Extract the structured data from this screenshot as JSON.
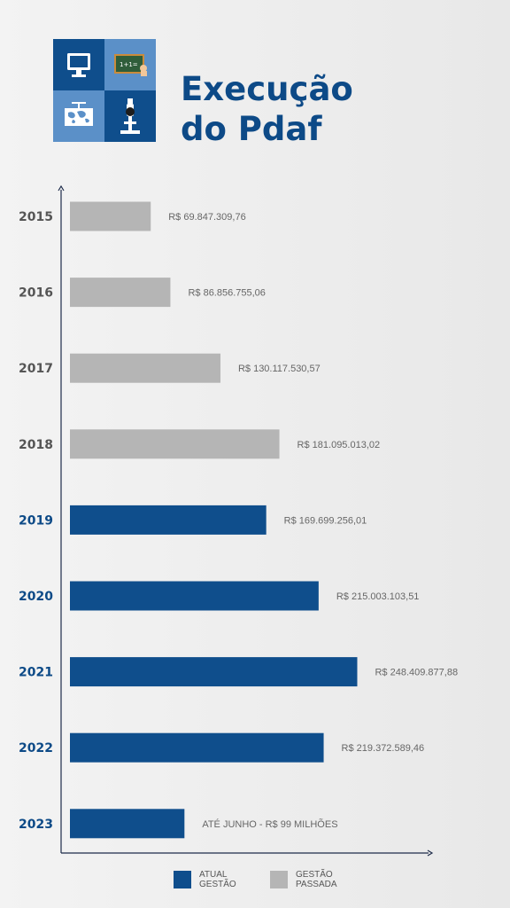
{
  "title": {
    "line1": "Execução",
    "line2": "do Pdaf"
  },
  "logo_icons": [
    "monitor-icon",
    "chalkboard-icon",
    "world-map-icon",
    "microscope-icon"
  ],
  "colors": {
    "current": "#0f4e8c",
    "past": "#b5b5b5",
    "title": "#0d4a87",
    "past_year_label": "#555555",
    "value_text": "#666666"
  },
  "chart_data": {
    "type": "bar",
    "orientation": "horizontal",
    "categories": [
      "2015",
      "2016",
      "2017",
      "2018",
      "2019",
      "2020",
      "2021",
      "2022",
      "2023"
    ],
    "values": [
      69847309.76,
      86856755.06,
      130117530.57,
      181095013.02,
      169699256.01,
      215003103.51,
      248409877.88,
      219372589.46,
      99000000
    ],
    "data_labels": [
      "R$ 69.847.309,76",
      "R$ 86.856.755,06",
      "R$ 130.117.530,57",
      "R$ 181.095.013,02",
      "R$ 169.699.256,01",
      "R$ 215.003.103,51",
      "R$ 248.409.877,88",
      "R$ 219.372.589,46",
      "ATÉ JUNHO - R$ 99 MILHÕES"
    ],
    "groups": [
      "past",
      "past",
      "past",
      "past",
      "current",
      "current",
      "current",
      "current",
      "current"
    ],
    "xlim": [
      0,
      320000000
    ],
    "grid": false,
    "legend": {
      "position": "bottom",
      "entries": [
        {
          "key": "current",
          "label_line1": "ATUAL",
          "label_line2": "GESTÃO"
        },
        {
          "key": "past",
          "label_line1": "GESTÃO",
          "label_line2": "PASSADA"
        }
      ]
    }
  }
}
